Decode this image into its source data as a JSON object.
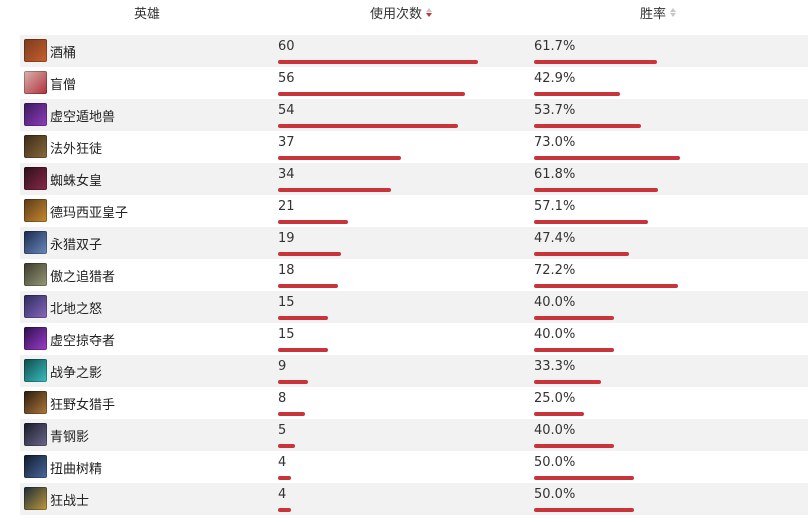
{
  "headers": {
    "hero": "英雄",
    "uses": "使用次数",
    "win_rate": "胜率"
  },
  "colors": {
    "bar": "#c8343a",
    "alt_row": "#f2f2f2",
    "sort_active": "#c8343a",
    "sort_inactive": "#c7c7c7"
  },
  "max_uses": 60,
  "rows": [
    {
      "name": "酒桶",
      "uses": "60",
      "uses_num": 60,
      "win": "61.7%",
      "win_num": 61.7,
      "avatar": [
        "#7a3a1e",
        "#c9602e"
      ]
    },
    {
      "name": "盲僧",
      "uses": "56",
      "uses_num": 56,
      "win": "42.9%",
      "win_num": 42.9,
      "avatar": [
        "#d9b4ae",
        "#b0303a"
      ]
    },
    {
      "name": "虚空遁地兽",
      "uses": "54",
      "uses_num": 54,
      "win": "53.7%",
      "win_num": 53.7,
      "avatar": [
        "#3a1a5a",
        "#8f3cc0"
      ]
    },
    {
      "name": "法外狂徒",
      "uses": "37",
      "uses_num": 37,
      "win": "73.0%",
      "win_num": 73.0,
      "avatar": [
        "#3a2a1a",
        "#8a6a3a"
      ]
    },
    {
      "name": "蜘蛛女皇",
      "uses": "34",
      "uses_num": 34,
      "win": "61.8%",
      "win_num": 61.8,
      "avatar": [
        "#2a0f1a",
        "#8a2a4a"
      ]
    },
    {
      "name": "德玛西亚皇子",
      "uses": "21",
      "uses_num": 21,
      "win": "57.1%",
      "win_num": 57.1,
      "avatar": [
        "#5a3a1a",
        "#c9892e"
      ]
    },
    {
      "name": "永猎双子",
      "uses": "19",
      "uses_num": 19,
      "win": "47.4%",
      "win_num": 47.4,
      "avatar": [
        "#1a2a4a",
        "#6a8ac0"
      ]
    },
    {
      "name": "傲之追猎者",
      "uses": "18",
      "uses_num": 18,
      "win": "72.2%",
      "win_num": 72.2,
      "avatar": [
        "#3a3a2a",
        "#9a9a7a"
      ]
    },
    {
      "name": "北地之怒",
      "uses": "15",
      "uses_num": 15,
      "win": "40.0%",
      "win_num": 40.0,
      "avatar": [
        "#2a2a5a",
        "#8a6ac0"
      ]
    },
    {
      "name": "虚空掠夺者",
      "uses": "15",
      "uses_num": 15,
      "win": "40.0%",
      "win_num": 40.0,
      "avatar": [
        "#2a0f4a",
        "#a03cd0"
      ]
    },
    {
      "name": "战争之影",
      "uses": "9",
      "uses_num": 9,
      "win": "33.3%",
      "win_num": 33.3,
      "avatar": [
        "#0f4a4a",
        "#3ac0c0"
      ]
    },
    {
      "name": "狂野女猎手",
      "uses": "8",
      "uses_num": 8,
      "win": "25.0%",
      "win_num": 25.0,
      "avatar": [
        "#2a1a0f",
        "#b07a3a"
      ]
    },
    {
      "name": "青钢影",
      "uses": "5",
      "uses_num": 5,
      "win": "40.0%",
      "win_num": 40.0,
      "avatar": [
        "#1a1a2a",
        "#6a6a8a"
      ]
    },
    {
      "name": "扭曲树精",
      "uses": "4",
      "uses_num": 4,
      "win": "50.0%",
      "win_num": 50.0,
      "avatar": [
        "#0f1a2a",
        "#4a6aa0"
      ]
    },
    {
      "name": "狂战士",
      "uses": "4",
      "uses_num": 4,
      "win": "50.0%",
      "win_num": 50.0,
      "avatar": [
        "#1a2a3a",
        "#c09a3a"
      ]
    }
  ]
}
